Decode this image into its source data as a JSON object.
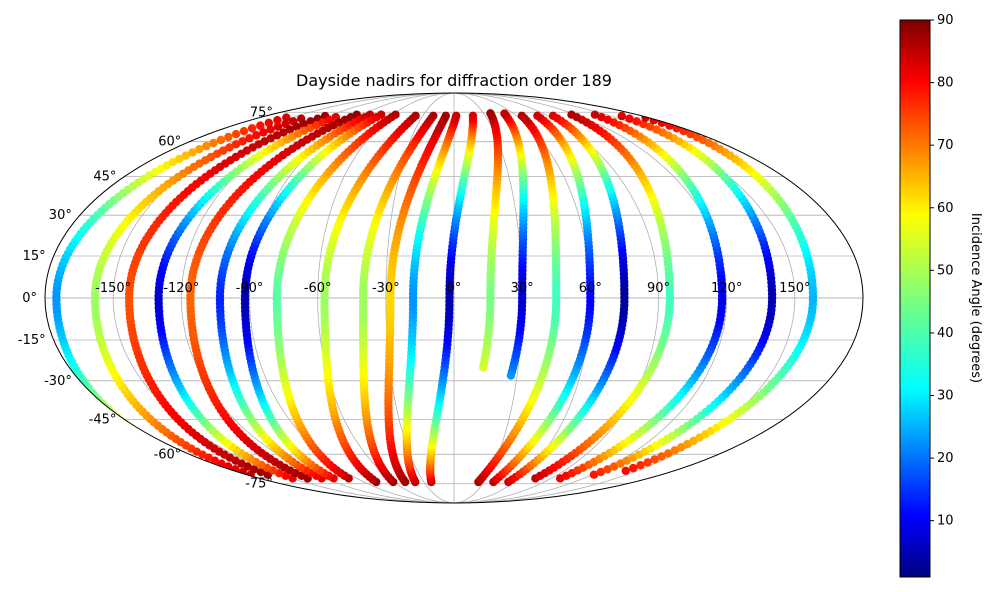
{
  "chart_data": {
    "type": "scatter",
    "projection": "mollweide",
    "title": "Dayside nadirs for diffraction order 189",
    "xlabel": "",
    "ylabel": "",
    "grid": true,
    "lon_ticks": [
      -150,
      -120,
      -90,
      -60,
      -30,
      0,
      30,
      60,
      90,
      120,
      150
    ],
    "lon_tick_labels": [
      "-150°",
      "-120°",
      "-90°",
      "-60°",
      "-30°",
      "0°",
      "30°",
      "60°",
      "90°",
      "120°",
      "150°"
    ],
    "lat_ticks": [
      75,
      60,
      45,
      30,
      15,
      0,
      -15,
      -30,
      -45,
      -60,
      -75
    ],
    "lat_tick_labels": [
      "75°",
      "60°",
      "45°",
      "30°",
      "15°",
      "0°",
      "-15°",
      "-30°",
      "-45°",
      "-60°",
      "-75°"
    ],
    "colorbar": {
      "label": "Incidence Angle (degrees)",
      "colormap": "jet",
      "range": [
        1,
        90
      ],
      "ticks": [
        10,
        20,
        30,
        40,
        50,
        60,
        70,
        80,
        90
      ]
    },
    "tracks": [
      {
        "lon_at_equator": -175,
        "lat_range": [
          -68,
          72
        ],
        "min_incidence": 25
      },
      {
        "lon_at_equator": -158,
        "lat_range": [
          -70,
          72
        ],
        "min_incidence": 48
      },
      {
        "lon_at_equator": -143,
        "lat_range": [
          -70,
          73
        ],
        "min_incidence": 72
      },
      {
        "lon_at_equator": -130,
        "lat_range": [
          -72,
          73
        ],
        "min_incidence": 8
      },
      {
        "lon_at_equator": -116,
        "lat_range": [
          -72,
          74
        ],
        "min_incidence": 70
      },
      {
        "lon_at_equator": -103,
        "lat_range": [
          -72,
          74
        ],
        "min_incidence": 15
      },
      {
        "lon_at_equator": -92,
        "lat_range": [
          -72,
          74
        ],
        "min_incidence": 5
      },
      {
        "lon_at_equator": -78,
        "lat_range": [
          -72,
          74
        ],
        "min_incidence": 42
      },
      {
        "lon_at_equator": -57,
        "lat_range": [
          -74,
          74
        ],
        "min_incidence": 48
      },
      {
        "lon_at_equator": -40,
        "lat_range": [
          -74,
          74
        ],
        "min_incidence": 48
      },
      {
        "lon_at_equator": -28,
        "lat_range": [
          -74,
          74
        ],
        "min_incidence": 60
      },
      {
        "lon_at_equator": -18,
        "lat_range": [
          -74,
          74
        ],
        "min_incidence": 25
      },
      {
        "lon_at_equator": -2,
        "lat_range": [
          -74,
          74
        ],
        "min_incidence": 5
      },
      {
        "lon_at_equator": 16,
        "lat_range": [
          -25,
          75
        ],
        "min_incidence": 45
      },
      {
        "lon_at_equator": 30,
        "lat_range": [
          -28,
          75
        ],
        "min_incidence": 8
      },
      {
        "lon_at_equator": 45,
        "lat_range": [
          -74,
          74
        ],
        "min_incidence": 40
      },
      {
        "lon_at_equator": 60,
        "lat_range": [
          -74,
          74
        ],
        "min_incidence": 12
      },
      {
        "lon_at_equator": 75,
        "lat_range": [
          -74,
          74
        ],
        "min_incidence": 3
      },
      {
        "lon_at_equator": 95,
        "lat_range": [
          -72,
          74
        ],
        "min_incidence": 40
      },
      {
        "lon_at_equator": 118,
        "lat_range": [
          -72,
          74
        ],
        "min_incidence": 10
      },
      {
        "lon_at_equator": 140,
        "lat_range": [
          -70,
          73
        ],
        "min_incidence": 5
      },
      {
        "lon_at_equator": 158,
        "lat_range": [
          -68,
          72
        ],
        "min_incidence": 28
      }
    ]
  }
}
